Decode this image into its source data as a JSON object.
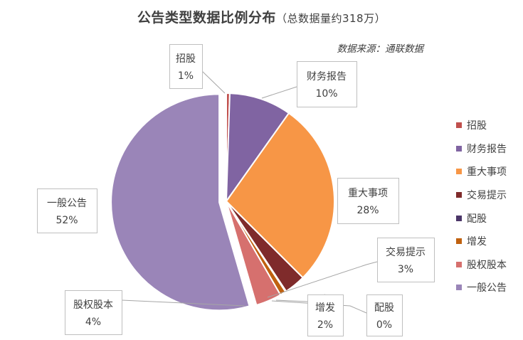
{
  "title": {
    "main": "公告类型数据比例分布",
    "sub": "（总数据量约318万）"
  },
  "source": "数据来源：通联数据",
  "chart_data": {
    "type": "pie",
    "categories": [
      "招股",
      "财务报告",
      "重大事项",
      "交易提示",
      "配股",
      "增发",
      "股权股本",
      "一般公告"
    ],
    "values": [
      1,
      10,
      28,
      3,
      0,
      2,
      4,
      52
    ],
    "value_labels": [
      "1%",
      "10%",
      "28%",
      "3%",
      "0%",
      "2%",
      "4%",
      "52%"
    ],
    "colors": [
      "#C0504D",
      "#8064A2",
      "#F79646",
      "#7F2B2B",
      "#4B3668",
      "#C0610F",
      "#D6706E",
      "#9A85B8"
    ],
    "exploded": [
      false,
      false,
      false,
      false,
      false,
      false,
      false,
      true
    ],
    "legend_position": "right"
  }
}
